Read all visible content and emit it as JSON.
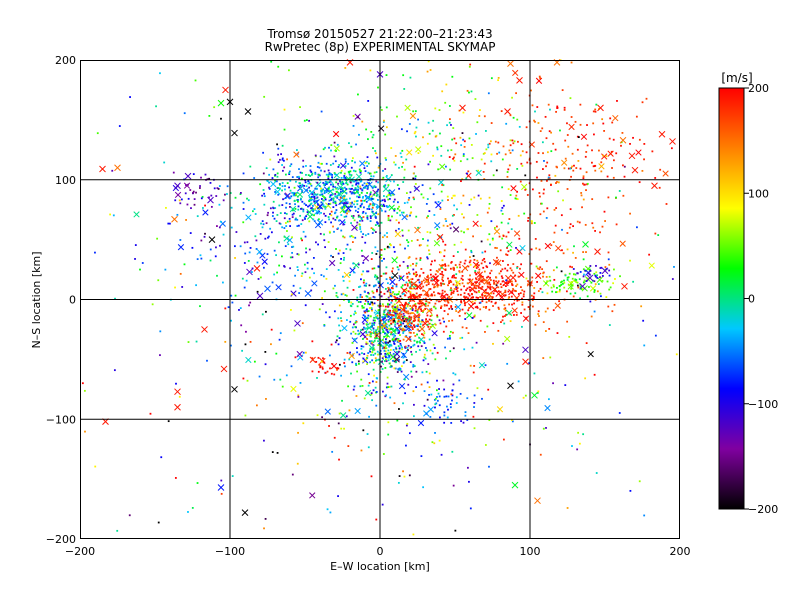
{
  "chart_data": {
    "type": "scatter",
    "title": "Tromsø 20150527 21:22:00–21:23:43",
    "subtitle": "RwPretec (8p) EXPERIMENTAL SKYMAP",
    "xlabel": "E–W location [km]",
    "ylabel": "N–S location [km]",
    "xlim": [
      -200,
      200
    ],
    "ylim": [
      -200,
      200
    ],
    "x_ticks": [
      "−200",
      "−100",
      "0",
      "100",
      "200"
    ],
    "y_ticks": [
      "−200",
      "−100",
      "0",
      "100",
      "200"
    ],
    "x_tick_values": [
      -200,
      -100,
      0,
      100,
      200
    ],
    "y_tick_values": [
      -200,
      -100,
      0,
      100,
      200
    ],
    "grid": true,
    "marker_types": [
      "dot",
      "cross"
    ],
    "colorbar": {
      "label": "[m/s]",
      "range": [
        -200,
        200
      ],
      "ticks": [
        "200",
        "100",
        "0",
        "−100",
        "−200"
      ],
      "tick_values": [
        200,
        100,
        0,
        -100,
        -200
      ],
      "colors": [
        "#000000",
        "#8000a0",
        "#0000ff",
        "#00c8ff",
        "#00ff00",
        "#ffff00",
        "#ff8000",
        "#ff0000"
      ]
    },
    "clusters": [
      {
        "x": -30,
        "y": 88,
        "sx": 22,
        "sy": 14,
        "v": -40,
        "sv": 45,
        "n": 650
      },
      {
        "x": -60,
        "y": 60,
        "sx": 40,
        "sy": 30,
        "v": -60,
        "sv": 50,
        "n": 250
      },
      {
        "x": 5,
        "y": -25,
        "sx": 14,
        "sy": 22,
        "v": -20,
        "sv": 70,
        "n": 700
      },
      {
        "x": 20,
        "y": -10,
        "sx": 10,
        "sy": 12,
        "v": 170,
        "sv": 25,
        "n": 180
      },
      {
        "x": 55,
        "y": 10,
        "sx": 25,
        "sy": 12,
        "v": 185,
        "sv": 20,
        "n": 480
      },
      {
        "x": 90,
        "y": 5,
        "sx": 25,
        "sy": 25,
        "v": 170,
        "sv": 30,
        "n": 120
      },
      {
        "x": 120,
        "y": 110,
        "sx": 35,
        "sy": 40,
        "v": 180,
        "sv": 25,
        "n": 260
      },
      {
        "x": 130,
        "y": 15,
        "sx": 12,
        "sy": 6,
        "v": 40,
        "sv": 25,
        "n": 90
      },
      {
        "x": 140,
        "y": 22,
        "sx": 6,
        "sy": 4,
        "v": -110,
        "sv": 20,
        "n": 25
      },
      {
        "x": 40,
        "y": 130,
        "sx": 45,
        "sy": 35,
        "v": 40,
        "sv": 60,
        "n": 180
      },
      {
        "x": 45,
        "y": -85,
        "sx": 8,
        "sy": 10,
        "v": -60,
        "sv": 20,
        "n": 45
      },
      {
        "x": -120,
        "y": 90,
        "sx": 10,
        "sy": 8,
        "v": -130,
        "sv": 20,
        "n": 35
      },
      {
        "x": 20,
        "y": 60,
        "sx": 40,
        "sy": 40,
        "v": 60,
        "sv": 70,
        "n": 250
      },
      {
        "x": 0,
        "y": 0,
        "sx": 110,
        "sy": 110,
        "v": 0,
        "sv": 120,
        "n": 450
      },
      {
        "x": -35,
        "y": -55,
        "sx": 6,
        "sy": 5,
        "v": 195,
        "sv": 10,
        "n": 25
      },
      {
        "x": 10,
        "y": -40,
        "sx": 60,
        "sy": 50,
        "v": 0,
        "sv": 100,
        "n": 120
      }
    ],
    "crosses": [
      {
        "x": -185,
        "y": 109,
        "v": 190
      },
      {
        "x": -175,
        "y": 110,
        "v": 150
      },
      {
        "x": -135,
        "y": 95,
        "v": -120
      },
      {
        "x": -137,
        "y": 67,
        "v": 150
      },
      {
        "x": -128,
        "y": 103,
        "v": -120
      },
      {
        "x": -113,
        "y": 83,
        "v": -120
      },
      {
        "x": -112,
        "y": 50,
        "v": -200
      },
      {
        "x": -106,
        "y": 164,
        "v": 30
      },
      {
        "x": -103,
        "y": 175,
        "v": 190
      },
      {
        "x": -100,
        "y": 165,
        "v": -200
      },
      {
        "x": -97,
        "y": 139,
        "v": -200
      },
      {
        "x": -88,
        "y": 157,
        "v": -200
      },
      {
        "x": -87,
        "y": 23,
        "v": -120
      },
      {
        "x": -82,
        "y": 26,
        "v": 190
      },
      {
        "x": -75,
        "y": 9,
        "v": -60
      },
      {
        "x": -135,
        "y": -77,
        "v": 190
      },
      {
        "x": -135,
        "y": -90,
        "v": 190
      },
      {
        "x": -183,
        "y": -102,
        "v": 190
      },
      {
        "x": -117,
        "y": -25,
        "v": 190
      },
      {
        "x": -104,
        "y": -58,
        "v": 190
      },
      {
        "x": -97,
        "y": -75,
        "v": -200
      },
      {
        "x": -90,
        "y": -178,
        "v": -200
      },
      {
        "x": -106,
        "y": -157,
        "v": -80
      },
      {
        "x": -80,
        "y": 3,
        "v": -120
      },
      {
        "x": -48,
        "y": 5,
        "v": -60
      },
      {
        "x": -55,
        "y": -20,
        "v": -120
      },
      {
        "x": -20,
        "y": 198,
        "v": 190
      },
      {
        "x": 0,
        "y": 188,
        "v": -120
      },
      {
        "x": 55,
        "y": 160,
        "v": 190
      },
      {
        "x": 85,
        "y": 157,
        "v": 190
      },
      {
        "x": 93,
        "y": 183,
        "v": 190
      },
      {
        "x": 87,
        "y": 197,
        "v": 150
      },
      {
        "x": 118,
        "y": 198,
        "v": 150
      },
      {
        "x": 147,
        "y": 160,
        "v": 190
      },
      {
        "x": 162,
        "y": 133,
        "v": 150
      },
      {
        "x": 168,
        "y": 120,
        "v": 190
      },
      {
        "x": 170,
        "y": 108,
        "v": 190
      },
      {
        "x": 188,
        "y": 138,
        "v": 190
      },
      {
        "x": 195,
        "y": 132,
        "v": 190
      },
      {
        "x": 137,
        "y": 46,
        "v": 20
      },
      {
        "x": 145,
        "y": 40,
        "v": 190
      },
      {
        "x": 150,
        "y": 24,
        "v": -120
      },
      {
        "x": 140,
        "y": 18,
        "v": -120
      },
      {
        "x": 135,
        "y": 11,
        "v": -120
      },
      {
        "x": 163,
        "y": 11,
        "v": 190
      },
      {
        "x": 183,
        "y": 95,
        "v": 190
      },
      {
        "x": 97,
        "y": -42,
        "v": -120
      },
      {
        "x": 97,
        "y": -52,
        "v": 190
      },
      {
        "x": 87,
        "y": -72,
        "v": -200
      },
      {
        "x": 103,
        "y": -80,
        "v": 20
      },
      {
        "x": 90,
        "y": -155,
        "v": 20
      },
      {
        "x": 105,
        "y": -168,
        "v": 150
      },
      {
        "x": 25,
        "y": 58,
        "v": 150
      },
      {
        "x": 40,
        "y": 52,
        "v": 190
      },
      {
        "x": 10,
        "y": 20,
        "v": -200
      },
      {
        "x": -17,
        "y": 60,
        "v": -120
      }
    ]
  }
}
